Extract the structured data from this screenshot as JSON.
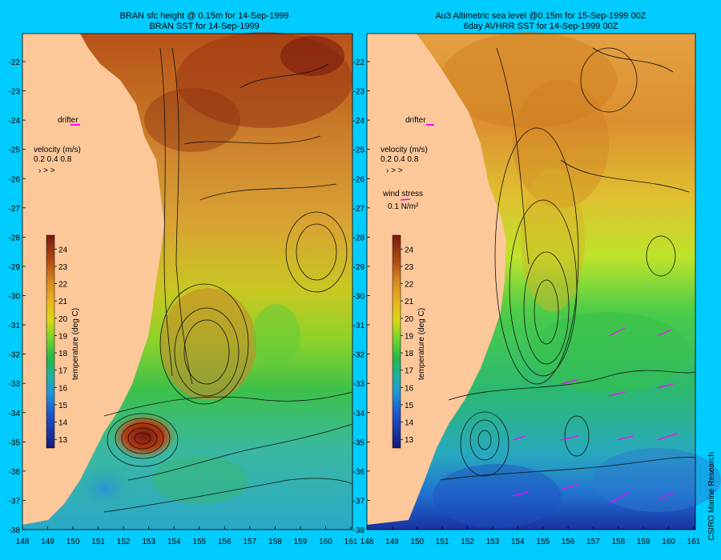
{
  "colors": {
    "background": "#00ccff",
    "land": "#fcc89a",
    "drifter": "#ff00ff",
    "contour": "#111111"
  },
  "left_panel": {
    "title_line1": "BRAN sfc height @ 0.15m for 14-Sep-1999",
    "title_line2": "BRAN SST for 14-Sep-1999",
    "drifter_label": "drifter",
    "velocity_label": "velocity (m/s)",
    "velocity_scale": "0.2 0.4 0.8",
    "colorbar_title": "temperature (deg C)"
  },
  "right_panel": {
    "title_line1": "Au3 Altimetric sea level  @0.15m  for 15-Sep-1999 00Z",
    "title_line2": "6day AVHRR SST for 14-Sep-1999 00Z",
    "drifter_label": "drifter",
    "velocity_label": "velocity (m/s)",
    "velocity_scale": "0.2 0.4 0.8",
    "windstress_label": "wind stress",
    "windstress_value": "0.1 N/m²",
    "colorbar_title": "temperature (deg C)"
  },
  "credit": "CSIRO Marine Research",
  "axes": {
    "lon_ticks_left": [
      "148",
      "149",
      "150",
      "151",
      "152",
      "153",
      "154",
      "155",
      "156",
      "157",
      "158",
      "159",
      "160",
      "161"
    ],
    "lon_ticks_right": [
      "148",
      "149",
      "150",
      "151",
      "152",
      "153",
      "154",
      "155",
      "156",
      "157",
      "158",
      "159",
      "160",
      "161"
    ],
    "lat_ticks": [
      "-22",
      "-23",
      "-24",
      "-25",
      "-26",
      "-27",
      "-28",
      "-29",
      "-30",
      "-31",
      "-32",
      "-33",
      "-34",
      "-35",
      "-36",
      "-37",
      "-38"
    ]
  },
  "colorbar": {
    "ticks": [
      "24",
      "23",
      "22",
      "21",
      "20",
      "19",
      "18",
      "17",
      "16",
      "15",
      "14",
      "13"
    ],
    "range": [
      12.5,
      24.8
    ]
  }
}
